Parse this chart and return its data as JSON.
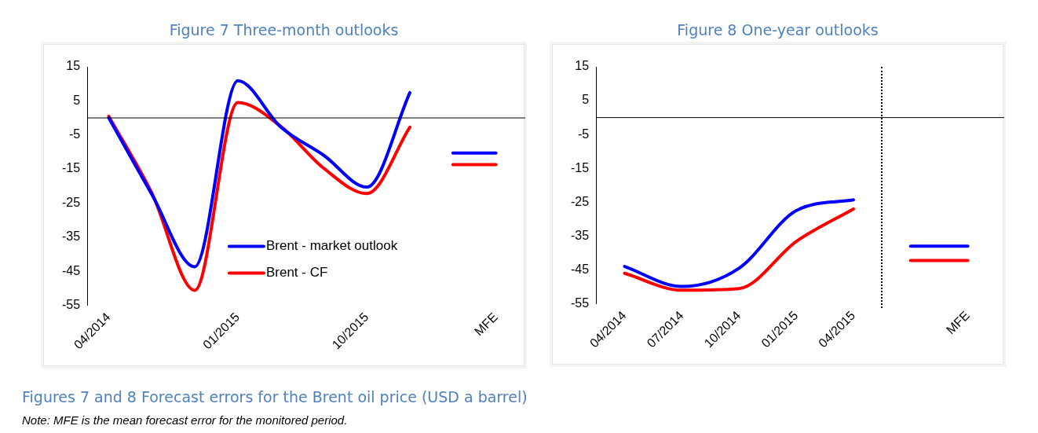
{
  "chart_data": [
    {
      "type": "line",
      "title": "Figure 7 Three-month outlooks",
      "categories": [
        "04/2014",
        null,
        null,
        "01/2015",
        null,
        null,
        "10/2015",
        null,
        null,
        "MFE"
      ],
      "series": [
        {
          "name": "Brent - market outlook",
          "color": "#0000ff",
          "values": [
            0,
            -22.4,
            -43.7,
            10.9,
            -2.7,
            -11,
            -20.3,
            7.4,
            null,
            null
          ]
        },
        {
          "name": "Brent - CF",
          "color": "#ff0000",
          "values": [
            0.5,
            -22,
            -50.6,
            4.5,
            -2.5,
            -14.8,
            -22.2,
            -2.7,
            null,
            null
          ]
        },
        {
          "color": "#0000ff",
          "values": [
            null,
            null,
            null,
            null,
            null,
            null,
            null,
            null,
            -10.3,
            -10.3
          ]
        },
        {
          "color": "#ff0000",
          "values": [
            null,
            null,
            null,
            null,
            null,
            null,
            null,
            null,
            -13.7,
            -13.7
          ]
        }
      ],
      "ylim": [
        -55,
        15
      ],
      "yticks": [
        -55,
        -45,
        -35,
        -25,
        -15,
        -5,
        5,
        15
      ],
      "grid": false,
      "legend": "bottom",
      "marker": "none",
      "line_style": "solid",
      "ref_lines": [
        {
          "axis": "y",
          "value": 0,
          "color": "#000000"
        }
      ],
      "annotations": [
        "Figures 7 and 8  Forecast errors for the Brent oil price (USD a barrel)",
        "Note: MFE is the mean forecast error for the monitored period."
      ]
    },
    {
      "type": "line",
      "title": "Figure 8 One-year outlooks",
      "categories": [
        "04/2014",
        "07/2014",
        "10/2014",
        "01/2015",
        "04/2015",
        null,
        "MFE"
      ],
      "series": [
        {
          "color": "#0000ff",
          "values": [
            -44,
            -49.9,
            -44.5,
            -27.5,
            -24.3,
            null,
            null
          ]
        },
        {
          "color": "#ff0000",
          "values": [
            -46,
            -51,
            -50.5,
            -36.6,
            -27,
            null,
            null
          ]
        },
        {
          "color": "#0000ff",
          "values": [
            null,
            null,
            null,
            null,
            null,
            -38,
            -38
          ]
        },
        {
          "color": "#ff0000",
          "values": [
            null,
            null,
            null,
            null,
            null,
            -42.2,
            -42.2
          ]
        }
      ],
      "ylim": [
        -55,
        15
      ],
      "yticks": [
        -55,
        -45,
        -35,
        -25,
        -15,
        -5,
        5,
        15
      ],
      "grid": false,
      "legend": false,
      "marker": "none",
      "line_style": "solid",
      "ref_lines": [
        {
          "axis": "y",
          "value": 0,
          "color": "#000000"
        }
      ]
    }
  ]
}
